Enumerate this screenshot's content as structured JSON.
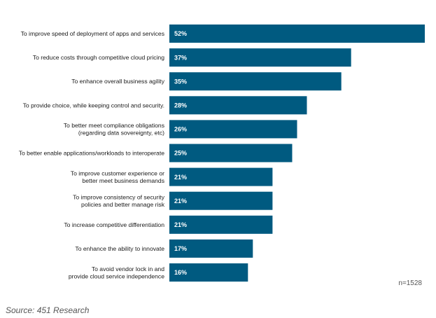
{
  "chart_data": {
    "type": "bar",
    "orientation": "horizontal",
    "categories": [
      [
        "To improve speed of deployment of apps and services"
      ],
      [
        "To reduce costs through competitive cloud pricing"
      ],
      [
        "To enhance overall business agility"
      ],
      [
        "To provide choice, while keeping control and security."
      ],
      [
        "To better meet compliance obligations",
        "(regarding data sovereignty, etc)"
      ],
      [
        "To better enable applications/workloads to interoperate"
      ],
      [
        "To improve customer experience or",
        "better meet business demands"
      ],
      [
        "To improve consistency of security",
        "policies and better manage risk"
      ],
      [
        "To increase competitive differentiation"
      ],
      [
        "To enhance the ability to innovate"
      ],
      [
        "To avoid vendor lock in and",
        "provide cloud service independence"
      ]
    ],
    "values": [
      52,
      37,
      35,
      28,
      26,
      25,
      21,
      21,
      21,
      17,
      16
    ],
    "value_labels": [
      "52%",
      "37%",
      "35%",
      "28%",
      "26%",
      "25%",
      "21%",
      "21%",
      "21%",
      "17%",
      "16%"
    ],
    "unit": "%",
    "bar_color": "#005A80",
    "grid": false,
    "legend": "none",
    "annotation": "n=1528"
  },
  "source": "Source: 451 Research"
}
